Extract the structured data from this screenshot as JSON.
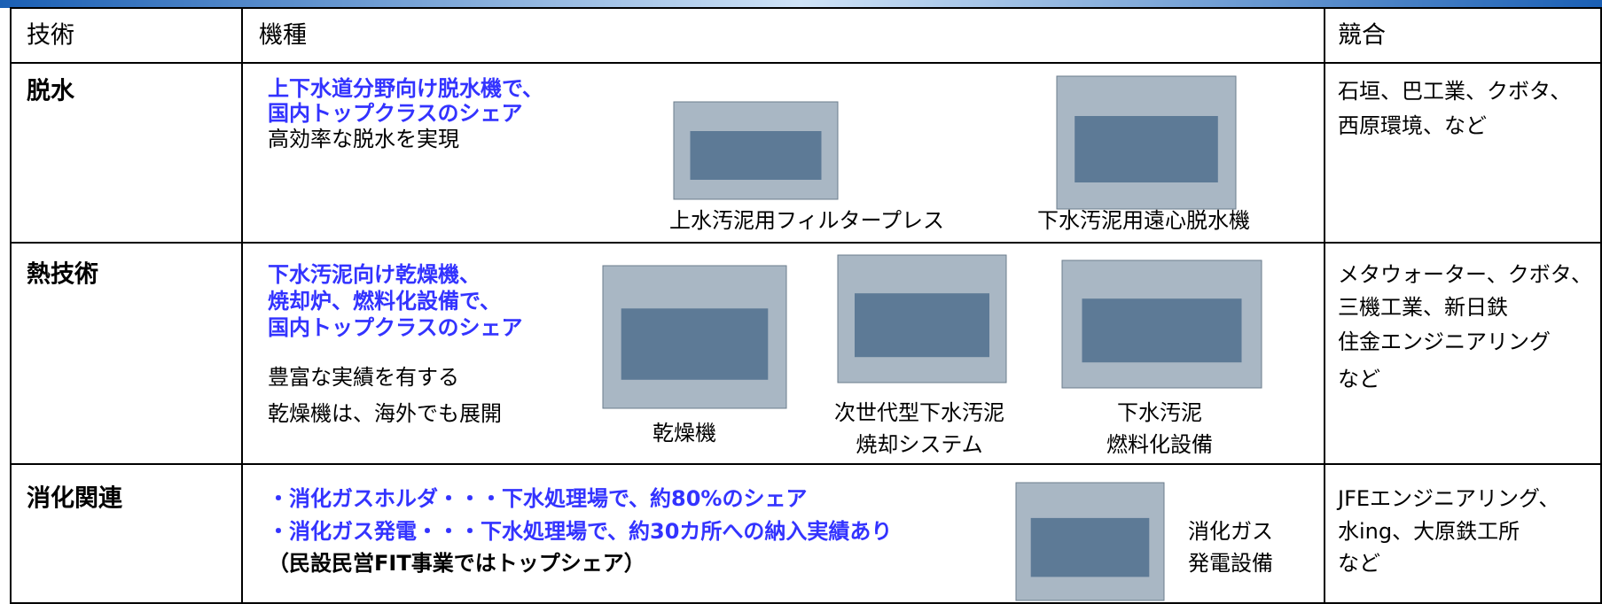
{
  "header": {
    "technology": "技術",
    "model": "機種",
    "competitors": "競合"
  },
  "rows": [
    {
      "technology": "脱水",
      "highlighted_lines": [
        "上下水道分野向け脱水機で、",
        "国内トップクラスのシェア"
      ],
      "plain_lines": [
        "高効率な脱水を実現"
      ],
      "products": [
        {
          "caption_lines": [
            "上水汚泥用フィルタープレス"
          ]
        },
        {
          "caption_lines": [
            "下水汚泥用遠心脱水機"
          ]
        }
      ],
      "competitors_lines": [
        "石垣、巴工業、クボタ、",
        "西原環境、など"
      ]
    },
    {
      "technology": "熱技術",
      "highlighted_lines": [
        "下水汚泥向け乾燥機、",
        "焼却炉、燃料化設備で、",
        "国内トップクラスのシェア"
      ],
      "plain_lines": [
        "豊富な実績を有する",
        "乾燥機は、海外でも展開"
      ],
      "products": [
        {
          "caption_lines": [
            "乾燥機"
          ]
        },
        {
          "caption_lines": [
            "次世代型下水汚泥",
            "焼却システム"
          ]
        },
        {
          "caption_lines": [
            "下水汚泥",
            "燃料化設備"
          ]
        }
      ],
      "competitors_lines": [
        "メタウォーター、クボタ、",
        "三機工業、新日鉄",
        "住金エンジニアリング",
        "など"
      ]
    },
    {
      "technology": "消化関連",
      "highlighted_lines": [
        "・消化ガスホルダ・・・下水処理場で、約80%のシェア",
        "・消化ガス発電・・・下水処理場で、約30カ所への納入実績あり"
      ],
      "plain_lines": [
        "（民設民営FIT事業ではトップシェア）"
      ],
      "products": [
        {
          "caption_lines": [
            "消化ガス",
            "発電設備"
          ]
        }
      ],
      "competitors_lines": [
        "JFEエンジニアリング、",
        "水ing、大原鉄工所",
        "など"
      ]
    }
  ]
}
